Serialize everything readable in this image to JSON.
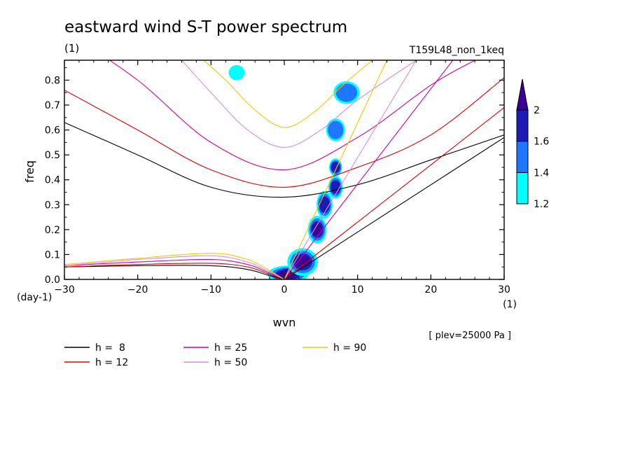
{
  "chart_data": {
    "type": "contour",
    "title": "eastward wind S-T power spectrum",
    "subtitle_left": "(1)",
    "subtitle_right": "T159L48_non_1keq",
    "xlabel": "wvn",
    "ylabel": "freq",
    "x_unit": "(1)",
    "y_unit": "(day-1)",
    "xlim": [
      -30,
      30
    ],
    "ylim": [
      0,
      0.88
    ],
    "xticks": [
      -30,
      -20,
      -10,
      0,
      10,
      20,
      30
    ],
    "xtick_labels": [
      "−30",
      "−20",
      "−10",
      "0",
      "10",
      "20",
      "30"
    ],
    "yticks": [
      0.0,
      0.1,
      0.2,
      0.3,
      0.4,
      0.5,
      0.6,
      0.7,
      0.8
    ],
    "ytick_labels": [
      "0.0",
      "0.1",
      "0.2",
      "0.3",
      "0.4",
      "0.5",
      "0.6",
      "0.7",
      "0.8"
    ],
    "annotation": "[ plev=25000 Pa ]",
    "colorbar": {
      "levels": [
        1.2,
        1.4,
        1.6,
        2
      ],
      "labels": [
        "1.2",
        "1.4",
        "1.6",
        "2"
      ],
      "colors": [
        "#00ffff",
        "#1e78ff",
        "#1c1cb4",
        "#3c0096"
      ]
    },
    "legend": [
      {
        "label": "h =  8",
        "color": "#000000"
      },
      {
        "label": "h = 12",
        "color": "#dc0000"
      },
      {
        "label": "h = 25",
        "color": "#d2009b"
      },
      {
        "label": "h = 50",
        "color": "#d78cdc"
      },
      {
        "label": "h = 90",
        "color": "#f0c800"
      }
    ],
    "curves": [
      {
        "label": "h =  8",
        "kelvin": [
          [
            0,
            0
          ],
          [
            30,
            0.57
          ]
        ],
        "igw": [
          [
            -30,
            0.63
          ],
          [
            -20,
            0.5
          ],
          [
            -10,
            0.37
          ],
          [
            0,
            0.33
          ],
          [
            10,
            0.38
          ],
          [
            20,
            0.48
          ],
          [
            30,
            0.58
          ]
        ],
        "rossby": [
          [
            -30,
            0.05
          ],
          [
            -20,
            0.055
          ],
          [
            -10,
            0.055
          ],
          [
            -5,
            0.04
          ],
          [
            -2,
            0.015
          ],
          [
            0,
            0
          ]
        ]
      },
      {
        "label": "h = 12",
        "kelvin": [
          [
            0,
            0
          ],
          [
            30,
            0.69
          ]
        ],
        "igw": [
          [
            -30,
            0.76
          ],
          [
            -20,
            0.6
          ],
          [
            -10,
            0.44
          ],
          [
            0,
            0.37
          ],
          [
            10,
            0.45
          ],
          [
            20,
            0.58
          ],
          [
            30,
            0.81
          ]
        ],
        "rossby": [
          [
            -30,
            0.05
          ],
          [
            -20,
            0.06
          ],
          [
            -10,
            0.065
          ],
          [
            -5,
            0.05
          ],
          [
            -2,
            0.02
          ],
          [
            0,
            0
          ]
        ]
      },
      {
        "label": "h = 25",
        "kelvin": [
          [
            0,
            0
          ],
          [
            23,
            0.88
          ]
        ],
        "igw": [
          [
            -30,
            1.0
          ],
          [
            -20,
            0.8
          ],
          [
            -10,
            0.55
          ],
          [
            0,
            0.44
          ],
          [
            10,
            0.57
          ],
          [
            20,
            0.78
          ],
          [
            26,
            0.88
          ]
        ],
        "rossby": [
          [
            -30,
            0.055
          ],
          [
            -20,
            0.07
          ],
          [
            -10,
            0.08
          ],
          [
            -5,
            0.06
          ],
          [
            -2,
            0.025
          ],
          [
            0,
            0
          ]
        ]
      },
      {
        "label": "h = 50",
        "kelvin": [
          [
            0,
            0
          ],
          [
            18,
            0.88
          ]
        ],
        "igw": [
          [
            -14,
            0.88
          ],
          [
            -10,
            0.75
          ],
          [
            -5,
            0.6
          ],
          [
            0,
            0.53
          ],
          [
            5,
            0.6
          ],
          [
            10,
            0.72
          ],
          [
            18,
            0.88
          ]
        ],
        "rossby": [
          [
            -30,
            0.055
          ],
          [
            -20,
            0.08
          ],
          [
            -10,
            0.095
          ],
          [
            -5,
            0.07
          ],
          [
            -2,
            0.03
          ],
          [
            0,
            0
          ]
        ]
      },
      {
        "label": "h = 90",
        "kelvin": [
          [
            0,
            0
          ],
          [
            14,
            0.88
          ]
        ],
        "igw": [
          [
            -11,
            0.88
          ],
          [
            -8,
            0.8
          ],
          [
            -4,
            0.68
          ],
          [
            0,
            0.61
          ],
          [
            4,
            0.67
          ],
          [
            8,
            0.78
          ],
          [
            12,
            0.88
          ]
        ],
        "rossby": [
          [
            -30,
            0.06
          ],
          [
            -20,
            0.085
          ],
          [
            -10,
            0.105
          ],
          [
            -5,
            0.08
          ],
          [
            -2,
            0.035
          ],
          [
            0,
            0
          ]
        ]
      }
    ],
    "spectral_peaks": [
      {
        "x": 0.5,
        "y": 0.02,
        "rx": 2.5,
        "ry": 0.03,
        "level": 3
      },
      {
        "x": 2.5,
        "y": 0.07,
        "rx": 1.8,
        "ry": 0.05,
        "level": 3
      },
      {
        "x": 4.5,
        "y": 0.2,
        "rx": 1.0,
        "ry": 0.05,
        "level": 3
      },
      {
        "x": 5.5,
        "y": 0.3,
        "rx": 0.8,
        "ry": 0.05,
        "level": 2
      },
      {
        "x": 7.0,
        "y": 0.37,
        "rx": 0.7,
        "ry": 0.04,
        "level": 2
      },
      {
        "x": 7.0,
        "y": 0.45,
        "rx": 0.6,
        "ry": 0.03,
        "level": 2
      },
      {
        "x": 7.0,
        "y": 0.6,
        "rx": 1.0,
        "ry": 0.04,
        "level": 1
      },
      {
        "x": 8.5,
        "y": 0.75,
        "rx": 1.5,
        "ry": 0.04,
        "level": 1
      },
      {
        "x": -6.5,
        "y": 0.83,
        "rx": 0.8,
        "ry": 0.025,
        "level": 0
      }
    ]
  }
}
